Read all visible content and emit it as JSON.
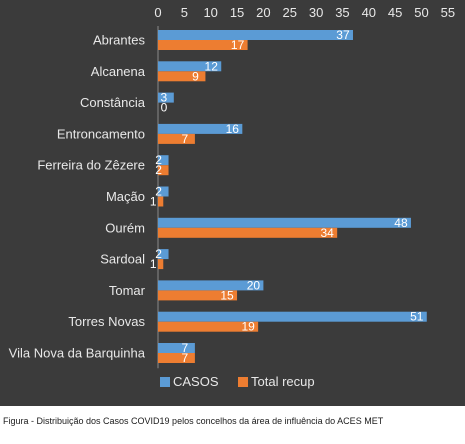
{
  "chart_data": {
    "type": "bar",
    "orientation": "horizontal",
    "categories": [
      "Abrantes",
      "Alcanena",
      "Constância",
      "Entroncamento",
      "Ferreira do Zêzere",
      "Mação",
      "Ourém",
      "Sardoal",
      "Tomar",
      "Torres Novas",
      "Vila Nova da Barquinha"
    ],
    "series": [
      {
        "name": "CASOS",
        "color": "#5b9bd5",
        "values": [
          37,
          12,
          3,
          16,
          2,
          2,
          48,
          2,
          20,
          51,
          7
        ]
      },
      {
        "name": "Total recup",
        "color": "#ed7d31",
        "values": [
          17,
          9,
          0,
          7,
          2,
          1,
          34,
          1,
          15,
          19,
          7
        ]
      }
    ],
    "x_ticks": [
      "0",
      "5",
      "10",
      "15",
      "20",
      "25",
      "30",
      "35",
      "40",
      "45",
      "50",
      "55"
    ],
    "xlim": [
      0,
      55
    ],
    "axis_position": "top",
    "legend_position": "bottom",
    "grid": false,
    "background": "#3b3b3b"
  },
  "caption": "Figura -  Distribuição dos Casos COVID19 pelos concelhos da área de influência do ACES MET"
}
